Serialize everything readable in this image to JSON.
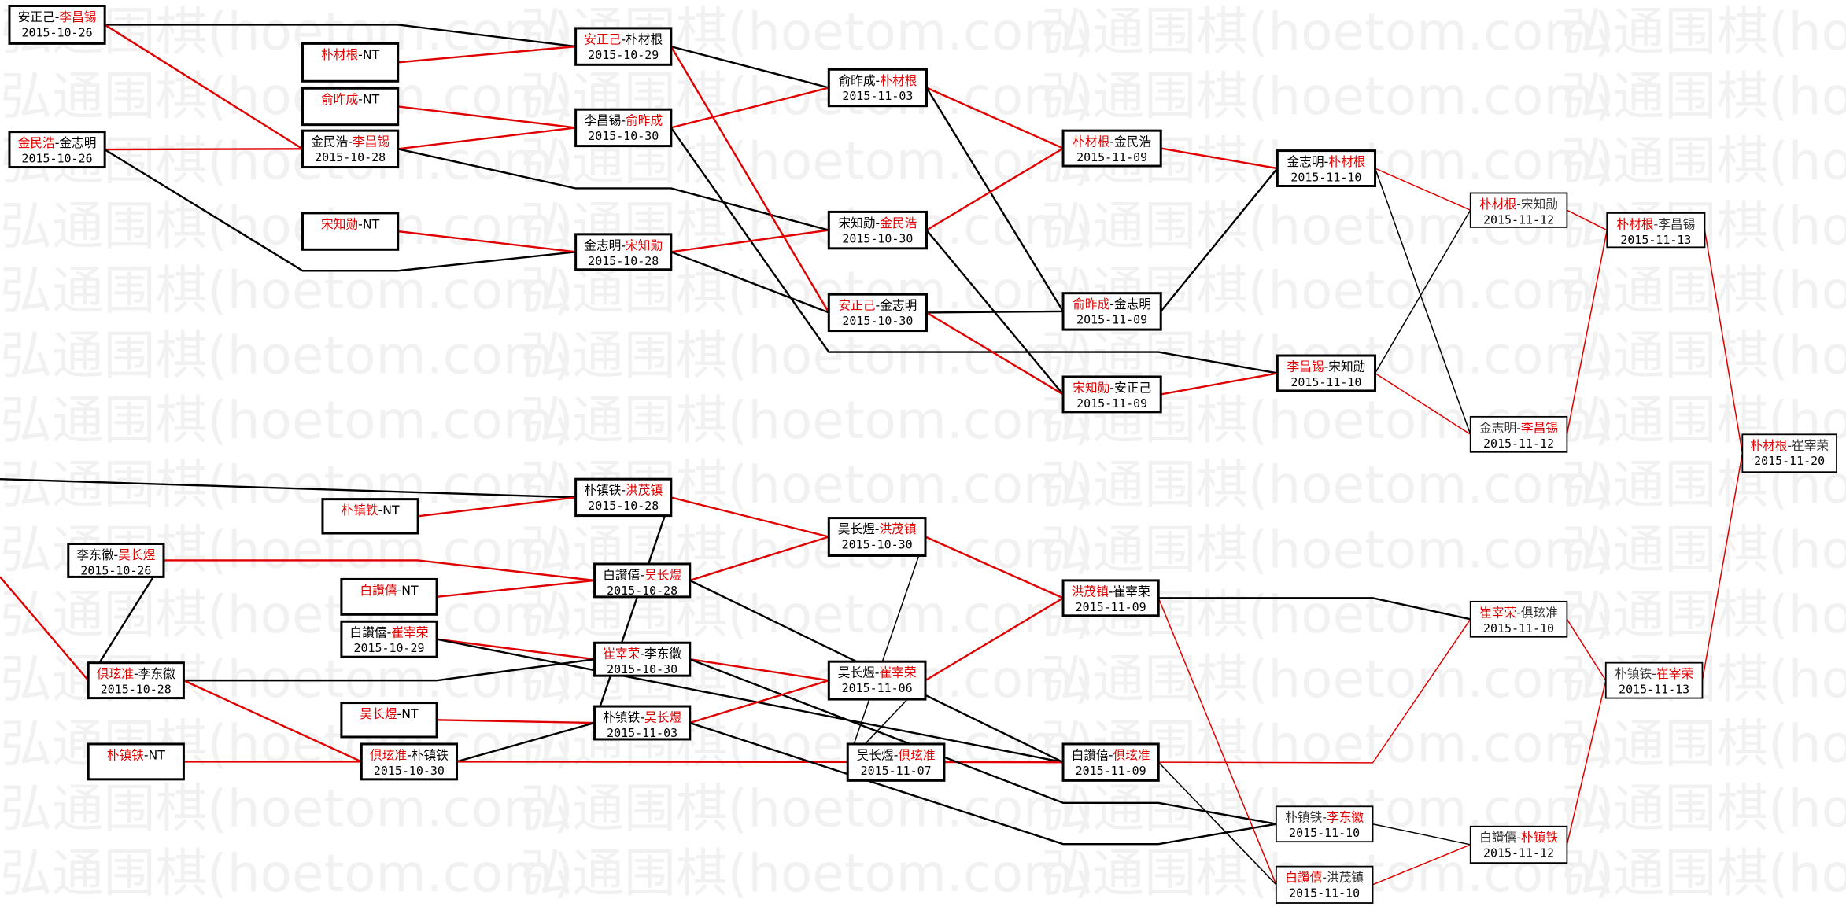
{
  "watermark": "弘通围棋(hoetom.com)",
  "colors": {
    "winner": "#e00000",
    "loser": "#000000",
    "box_border": "#000000",
    "watermark": "#f1f1f1"
  },
  "nodes": [
    {
      "id": "A",
      "p1": "安正己",
      "p2": "李昌锡",
      "date": "2015-10-26",
      "red": 2
    },
    {
      "id": "B",
      "p1": "金民浩",
      "p2": "金志明",
      "date": "2015-10-26",
      "red": 1
    },
    {
      "id": "C",
      "p1": "朴材根",
      "p2": "NT",
      "date": "",
      "red": 1
    },
    {
      "id": "D",
      "p1": "俞昨成",
      "p2": "NT",
      "date": "",
      "red": 1
    },
    {
      "id": "E",
      "p1": "金民浩",
      "p2": "李昌锡",
      "date": "2015-10-28",
      "red": 2
    },
    {
      "id": "F",
      "p1": "宋知勋",
      "p2": "NT",
      "date": "",
      "red": 1
    },
    {
      "id": "G",
      "p1": "安正己",
      "p2": "朴材根",
      "date": "2015-10-29",
      "red": 1
    },
    {
      "id": "H",
      "p1": "李昌锡",
      "p2": "俞昨成",
      "date": "2015-10-30",
      "red": 2
    },
    {
      "id": "I",
      "p1": "金志明",
      "p2": "宋知勋",
      "date": "2015-10-28",
      "red": 2
    },
    {
      "id": "J",
      "p1": "俞昨成",
      "p2": "朴材根",
      "date": "2015-11-03",
      "red": 2
    },
    {
      "id": "K",
      "p1": "宋知勋",
      "p2": "金民浩",
      "date": "2015-10-30",
      "red": 2
    },
    {
      "id": "L",
      "p1": "安正己",
      "p2": "金志明",
      "date": "2015-10-30",
      "red": 1
    },
    {
      "id": "M",
      "p1": "朴材根",
      "p2": "金民浩",
      "date": "2015-11-09",
      "red": 1
    },
    {
      "id": "N",
      "p1": "俞昨成",
      "p2": "金志明",
      "date": "2015-11-09",
      "red": 1
    },
    {
      "id": "O",
      "p1": "宋知勋",
      "p2": "安正己",
      "date": "2015-11-09",
      "red": 1
    },
    {
      "id": "P",
      "p1": "金志明",
      "p2": "朴材根",
      "date": "2015-11-10",
      "red": 2
    },
    {
      "id": "Q",
      "p1": "李昌锡",
      "p2": "宋知勋",
      "date": "2015-11-10",
      "red": 1
    },
    {
      "id": "R",
      "p1": "朴材根",
      "p2": "宋知勋",
      "date": "2015-11-12",
      "red": 1
    },
    {
      "id": "S",
      "p1": "金志明",
      "p2": "李昌锡",
      "date": "2015-11-12",
      "red": 2
    },
    {
      "id": "T",
      "p1": "朴材根",
      "p2": "李昌锡",
      "date": "2015-11-13",
      "red": 1
    },
    {
      "id": "U",
      "p1": "朴材根",
      "p2": "崔宰荣",
      "date": "2015-11-20",
      "red": 1
    },
    {
      "id": "V",
      "p1": "朴镇铁",
      "p2": "洪茂镇",
      "date": "2015-10-28",
      "red": 2
    },
    {
      "id": "W",
      "p1": "朴镇铁",
      "p2": "NT",
      "date": "",
      "red": 1
    },
    {
      "id": "X",
      "p1": "李东徽",
      "p2": "吴长煜",
      "date": "2015-10-26",
      "red": 2
    },
    {
      "id": "Y",
      "p1": "白讚僖",
      "p2": "吴长煜",
      "date": "2015-10-28",
      "red": 2
    },
    {
      "id": "Z",
      "p1": "白讚僖",
      "p2": "NT",
      "date": "",
      "red": 1
    },
    {
      "id": "AA",
      "p1": "白讚僖",
      "p2": "崔宰荣",
      "date": "2015-10-29",
      "red": 2
    },
    {
      "id": "AB",
      "p1": "俱玹准",
      "p2": "李东徽",
      "date": "2015-10-28",
      "red": 1
    },
    {
      "id": "AC",
      "p1": "崔宰荣",
      "p2": "李东徽",
      "date": "2015-10-30",
      "red": 1
    },
    {
      "id": "AD",
      "p1": "吴长煜",
      "p2": "NT",
      "date": "",
      "red": 1
    },
    {
      "id": "AE",
      "p1": "朴镇铁",
      "p2": "吴长煜",
      "date": "2015-11-03",
      "red": 2
    },
    {
      "id": "AF",
      "p1": "朴镇铁",
      "p2": "NT",
      "date": "",
      "red": 1
    },
    {
      "id": "AG",
      "p1": "俱玹准",
      "p2": "朴镇铁",
      "date": "2015-10-30",
      "red": 1
    },
    {
      "id": "AH",
      "p1": "吴长煜",
      "p2": "洪茂镇",
      "date": "2015-10-30",
      "red": 2
    },
    {
      "id": "AI",
      "p1": "吴长煜",
      "p2": "崔宰荣",
      "date": "2015-11-06",
      "red": 2
    },
    {
      "id": "AJ",
      "p1": "吴长煜",
      "p2": "俱玹准",
      "date": "2015-11-07",
      "red": 2
    },
    {
      "id": "AK",
      "p1": "洪茂镇",
      "p2": "崔宰荣",
      "date": "2015-11-09",
      "red": 1
    },
    {
      "id": "AL",
      "p1": "白讚僖",
      "p2": "俱玹准",
      "date": "2015-11-09",
      "red": 2
    },
    {
      "id": "AM",
      "p1": "朴镇铁",
      "p2": "李东徽",
      "date": "2015-11-10",
      "red": 2
    },
    {
      "id": "AN",
      "p1": "白讚僖",
      "p2": "洪茂镇",
      "date": "2015-11-10",
      "red": 1
    },
    {
      "id": "AO",
      "p1": "崔宰荣",
      "p2": "俱玹准",
      "date": "2015-11-10",
      "red": 1
    },
    {
      "id": "AP",
      "p1": "白讚僖",
      "p2": "朴镇铁",
      "date": "2015-11-12",
      "red": 2
    },
    {
      "id": "AQ",
      "p1": "朴镇铁",
      "p2": "崔宰荣",
      "date": "2015-11-13",
      "red": 2
    }
  ]
}
